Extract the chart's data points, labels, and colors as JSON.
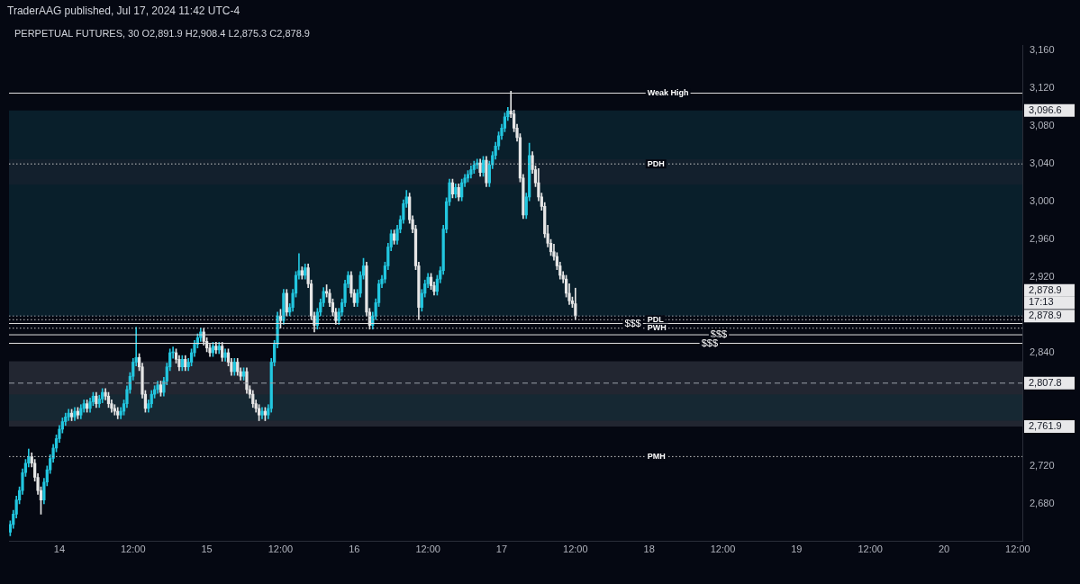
{
  "chart_data": {
    "type": "candlestick",
    "title": "PERPETUAL FUTURES, 30 O2,891.9 H2,908.4 L2,875.3 C2,878.9",
    "subtitle": "TraderAAG published, Jul 17, 2024 11:42 UTC-4",
    "x": [
      "2024-07-13T16:00",
      "2024-07-13T16:30",
      "2024-07-13T17:00",
      "2024-07-13T17:30",
      "2024-07-13T18:00",
      "2024-07-13T18:30",
      "2024-07-13T19:00",
      "2024-07-13T19:30",
      "2024-07-13T20:00",
      "2024-07-13T20:30",
      "2024-07-13T21:00",
      "2024-07-13T21:30",
      "2024-07-13T22:00",
      "2024-07-13T22:30",
      "2024-07-13T23:00",
      "2024-07-13T23:30",
      "2024-07-14T00:00",
      "2024-07-14T00:30",
      "2024-07-14T01:00",
      "2024-07-14T01:30",
      "2024-07-14T02:00",
      "2024-07-14T02:30",
      "2024-07-14T03:00",
      "2024-07-14T03:30",
      "2024-07-14T04:00",
      "2024-07-14T04:30",
      "2024-07-14T05:00",
      "2024-07-14T05:30",
      "2024-07-14T06:00",
      "2024-07-14T06:30",
      "2024-07-14T07:00",
      "2024-07-14T07:30",
      "2024-07-14T08:00",
      "2024-07-14T08:30",
      "2024-07-14T09:00",
      "2024-07-14T09:30",
      "2024-07-14T10:00",
      "2024-07-14T10:30",
      "2024-07-14T11:00",
      "2024-07-14T11:30",
      "2024-07-14T12:00",
      "2024-07-14T12:30",
      "2024-07-14T13:00",
      "2024-07-14T13:30",
      "2024-07-14T14:00",
      "2024-07-14T14:30",
      "2024-07-14T15:00",
      "2024-07-14T15:30",
      "2024-07-14T16:00",
      "2024-07-14T16:30",
      "2024-07-14T17:00",
      "2024-07-14T17:30",
      "2024-07-14T18:00",
      "2024-07-14T18:30",
      "2024-07-14T19:00",
      "2024-07-14T19:30",
      "2024-07-14T20:00",
      "2024-07-14T20:30",
      "2024-07-14T21:00",
      "2024-07-14T21:30",
      "2024-07-14T22:00",
      "2024-07-14T22:30",
      "2024-07-14T23:00",
      "2024-07-14T23:30",
      "2024-07-15T00:00",
      "2024-07-15T00:30",
      "2024-07-15T01:00",
      "2024-07-15T01:30",
      "2024-07-15T02:00",
      "2024-07-15T02:30",
      "2024-07-15T03:00",
      "2024-07-15T03:30",
      "2024-07-15T04:00",
      "2024-07-15T04:30",
      "2024-07-15T05:00",
      "2024-07-15T05:30",
      "2024-07-15T06:00",
      "2024-07-15T06:30",
      "2024-07-15T07:00",
      "2024-07-15T07:30",
      "2024-07-15T08:00",
      "2024-07-15T08:30",
      "2024-07-15T09:00",
      "2024-07-15T09:30",
      "2024-07-15T10:00",
      "2024-07-15T10:30",
      "2024-07-15T11:00",
      "2024-07-15T11:30",
      "2024-07-15T12:00",
      "2024-07-15T12:30",
      "2024-07-15T13:00",
      "2024-07-15T13:30",
      "2024-07-15T14:00",
      "2024-07-15T14:30",
      "2024-07-15T15:00",
      "2024-07-15T15:30",
      "2024-07-15T16:00",
      "2024-07-15T16:30",
      "2024-07-15T17:00",
      "2024-07-15T17:30",
      "2024-07-15T18:00",
      "2024-07-15T18:30",
      "2024-07-15T19:00",
      "2024-07-15T19:30",
      "2024-07-15T20:00",
      "2024-07-15T20:30",
      "2024-07-15T21:00",
      "2024-07-15T21:30",
      "2024-07-15T22:00",
      "2024-07-15T22:30",
      "2024-07-15T23:00",
      "2024-07-15T23:30",
      "2024-07-16T00:00",
      "2024-07-16T00:30",
      "2024-07-16T01:00",
      "2024-07-16T01:30",
      "2024-07-16T02:00",
      "2024-07-16T02:30",
      "2024-07-16T03:00",
      "2024-07-16T03:30",
      "2024-07-16T04:00",
      "2024-07-16T04:30",
      "2024-07-16T05:00",
      "2024-07-16T05:30",
      "2024-07-16T06:00",
      "2024-07-16T06:30",
      "2024-07-16T07:00",
      "2024-07-16T07:30",
      "2024-07-16T08:00",
      "2024-07-16T08:30",
      "2024-07-16T09:00",
      "2024-07-16T09:30",
      "2024-07-16T10:00",
      "2024-07-16T10:30",
      "2024-07-16T11:00",
      "2024-07-16T11:30",
      "2024-07-16T12:00",
      "2024-07-16T12:30",
      "2024-07-16T13:00",
      "2024-07-16T13:30",
      "2024-07-16T14:00",
      "2024-07-16T14:30",
      "2024-07-16T15:00",
      "2024-07-16T15:30",
      "2024-07-16T16:00",
      "2024-07-16T16:30",
      "2024-07-16T17:00",
      "2024-07-16T17:30",
      "2024-07-16T18:00",
      "2024-07-16T18:30",
      "2024-07-16T19:00",
      "2024-07-16T19:30",
      "2024-07-16T20:00",
      "2024-07-16T20:30",
      "2024-07-16T21:00",
      "2024-07-16T21:30",
      "2024-07-16T22:00",
      "2024-07-16T22:30",
      "2024-07-16T23:00",
      "2024-07-16T23:30",
      "2024-07-17T00:00",
      "2024-07-17T00:30",
      "2024-07-17T01:00",
      "2024-07-17T01:30",
      "2024-07-17T02:00",
      "2024-07-17T02:30",
      "2024-07-17T03:00",
      "2024-07-17T03:30",
      "2024-07-17T04:00",
      "2024-07-17T04:30",
      "2024-07-17T05:00",
      "2024-07-17T05:30",
      "2024-07-17T06:00",
      "2024-07-17T06:30",
      "2024-07-17T07:00",
      "2024-07-17T07:30",
      "2024-07-17T08:00",
      "2024-07-17T08:30",
      "2024-07-17T09:00",
      "2024-07-17T09:30",
      "2024-07-17T10:00",
      "2024-07-17T10:30",
      "2024-07-17T11:00",
      "2024-07-17T11:30",
      "2024-07-17T12:00"
    ],
    "series": [
      {
        "colors": [
          "#22c7e0",
          "#22c7e0",
          "#22c7e0",
          "#22c7e0",
          "#22c7e0",
          "#22c7e0",
          "#22c7e0",
          "#e6e6e6",
          "#e6e6e6",
          "#e6e6e6",
          "#e6e6e6",
          "#22c7e0",
          "#22c7e0",
          "#22c7e0",
          "#22c7e0",
          "#22c7e0",
          "#22c7e0",
          "#22c7e0",
          "#22c7e0",
          "#22c7e0",
          "#e6e6e6",
          "#22c7e0",
          "#e6e6e6",
          "#22c7e0",
          "#22c7e0",
          "#e6e6e6",
          "#22c7e0",
          "#22c7e0",
          "#e6e6e6",
          "#22c7e0",
          "#22c7e0",
          "#e6e6e6",
          "#e6e6e6",
          "#e6e6e6",
          "#e6e6e6",
          "#e6e6e6",
          "#22c7e0",
          "#22c7e0",
          "#22c7e0",
          "#22c7e0",
          "#22c7e0",
          "#22c7e0",
          "#e6e6e6",
          "#e6e6e6",
          "#e6e6e6",
          "#22c7e0",
          "#22c7e0",
          "#22c7e0",
          "#22c7e0",
          "#e6e6e6",
          "#22c7e0",
          "#22c7e0",
          "#22c7e0",
          "#22c7e0",
          "#e6e6e6",
          "#e6e6e6",
          "#22c7e0",
          "#e6e6e6",
          "#22c7e0",
          "#22c7e0",
          "#22c7e0",
          "#22c7e0",
          "#22c7e0",
          "#e6e6e6",
          "#e6e6e6",
          "#e6e6e6",
          "#22c7e0",
          "#e6e6e6",
          "#22c7e0",
          "#e6e6e6",
          "#22c7e0",
          "#e6e6e6",
          "#e6e6e6",
          "#22c7e0",
          "#e6e6e6",
          "#e6e6e6",
          "#22c7e0",
          "#e6e6e6",
          "#e6e6e6",
          "#e6e6e6",
          "#e6e6e6",
          "#e6e6e6",
          "#22c7e0",
          "#e6e6e6",
          "#22c7e0",
          "#22c7e0",
          "#22c7e0",
          "#22c7e0",
          "#e6e6e6",
          "#22c7e0",
          "#e6e6e6",
          "#22c7e0",
          "#22c7e0",
          "#22c7e0",
          "#22c7e0",
          "#e6e6e6",
          "#22c7e0",
          "#e6e6e6",
          "#e6e6e6",
          "#e6e6e6",
          "#22c7e0",
          "#22c7e0",
          "#22c7e0",
          "#e6e6e6",
          "#e6e6e6",
          "#e6e6e6",
          "#e6e6e6",
          "#22c7e0",
          "#22c7e0",
          "#22c7e0",
          "#22c7e0",
          "#e6e6e6",
          "#e6e6e6",
          "#22c7e0",
          "#22c7e0",
          "#22c7e0",
          "#e6e6e6",
          "#e6e6e6",
          "#22c7e0",
          "#22c7e0",
          "#22c7e0",
          "#22c7e0",
          "#22c7e0",
          "#22c7e0",
          "#22c7e0",
          "#e6e6e6",
          "#22c7e0",
          "#22c7e0",
          "#22c7e0",
          "#22c7e0",
          "#e6e6e6",
          "#e6e6e6",
          "#e6e6e6",
          "#e6e6e6",
          "#22c7e0",
          "#22c7e0",
          "#22c7e0",
          "#e6e6e6",
          "#e6e6e6",
          "#22c7e0",
          "#22c7e0",
          "#22c7e0",
          "#22c7e0",
          "#22c7e0",
          "#e6e6e6",
          "#22c7e0",
          "#e6e6e6",
          "#22c7e0",
          "#22c7e0",
          "#22c7e0",
          "#22c7e0",
          "#22c7e0",
          "#22c7e0",
          "#e6e6e6",
          "#22c7e0",
          "#e6e6e6",
          "#22c7e0",
          "#22c7e0",
          "#22c7e0",
          "#22c7e0",
          "#22c7e0",
          "#22c7e0",
          "#22c7e0",
          "#e6e6e6",
          "#e6e6e6",
          "#e6e6e6",
          "#e6e6e6",
          "#e6e6e6",
          "#22c7e0",
          "#22c7e0",
          "#e6e6e6",
          "#e6e6e6",
          "#e6e6e6",
          "#e6e6e6",
          "#e6e6e6",
          "#e6e6e6",
          "#e6e6e6",
          "#e6e6e6",
          "#e6e6e6",
          "#e6e6e6",
          "#e6e6e6",
          "#e6e6e6",
          "#e6e6e6",
          "#e6e6e6",
          "#e6e6e6"
        ],
        "ohlc": [
          [
            2650,
            2662,
            2646,
            2658
          ],
          [
            2658,
            2673,
            2654,
            2669
          ],
          [
            2669,
            2688,
            2665,
            2684
          ],
          [
            2684,
            2698,
            2680,
            2694
          ],
          [
            2694,
            2717,
            2690,
            2713
          ],
          [
            2713,
            2727,
            2709,
            2723
          ],
          [
            2723,
            2738,
            2719,
            2730
          ],
          [
            2730,
            2734,
            2719,
            2723
          ],
          [
            2723,
            2727,
            2704,
            2708
          ],
          [
            2708,
            2712,
            2690,
            2694
          ],
          [
            2694,
            2698,
            2669,
            2684
          ],
          [
            2684,
            2707,
            2680,
            2703
          ],
          [
            2703,
            2720,
            2699,
            2716
          ],
          [
            2716,
            2732,
            2712,
            2728
          ],
          [
            2728,
            2743,
            2724,
            2739
          ],
          [
            2739,
            2753,
            2735,
            2749
          ],
          [
            2749,
            2763,
            2745,
            2759
          ],
          [
            2759,
            2771,
            2755,
            2767
          ],
          [
            2767,
            2776,
            2763,
            2772
          ],
          [
            2772,
            2780,
            2768,
            2776
          ],
          [
            2776,
            2780,
            2768,
            2772
          ],
          [
            2772,
            2782,
            2768,
            2778
          ],
          [
            2778,
            2782,
            2770,
            2774
          ],
          [
            2774,
            2785,
            2770,
            2781
          ],
          [
            2781,
            2790,
            2777,
            2786
          ],
          [
            2786,
            2790,
            2777,
            2781
          ],
          [
            2781,
            2792,
            2777,
            2788
          ],
          [
            2788,
            2798,
            2784,
            2794
          ],
          [
            2794,
            2798,
            2782,
            2786
          ],
          [
            2786,
            2795,
            2782,
            2791
          ],
          [
            2791,
            2802,
            2787,
            2798
          ],
          [
            2798,
            2802,
            2790,
            2794
          ],
          [
            2794,
            2798,
            2782,
            2786
          ],
          [
            2786,
            2790,
            2777,
            2781
          ],
          [
            2781,
            2785,
            2774,
            2778
          ],
          [
            2778,
            2782,
            2770,
            2774
          ],
          [
            2774,
            2782,
            2770,
            2778
          ],
          [
            2778,
            2790,
            2774,
            2786
          ],
          [
            2786,
            2805,
            2782,
            2801
          ],
          [
            2801,
            2819,
            2797,
            2815
          ],
          [
            2815,
            2834,
            2811,
            2830
          ],
          [
            2830,
            2867,
            2826,
            2835
          ],
          [
            2835,
            2839,
            2821,
            2825
          ],
          [
            2825,
            2829,
            2792,
            2796
          ],
          [
            2796,
            2800,
            2777,
            2781
          ],
          [
            2781,
            2790,
            2777,
            2786
          ],
          [
            2786,
            2800,
            2782,
            2796
          ],
          [
            2796,
            2805,
            2792,
            2801
          ],
          [
            2801,
            2810,
            2797,
            2806
          ],
          [
            2806,
            2810,
            2794,
            2798
          ],
          [
            2798,
            2814,
            2794,
            2810
          ],
          [
            2810,
            2829,
            2806,
            2825
          ],
          [
            2825,
            2844,
            2821,
            2840
          ],
          [
            2840,
            2846,
            2834,
            2840
          ],
          [
            2840,
            2844,
            2829,
            2833
          ],
          [
            2833,
            2837,
            2821,
            2825
          ],
          [
            2825,
            2837,
            2821,
            2833
          ],
          [
            2833,
            2837,
            2821,
            2825
          ],
          [
            2825,
            2834,
            2821,
            2830
          ],
          [
            2830,
            2844,
            2826,
            2840
          ],
          [
            2840,
            2853,
            2836,
            2849
          ],
          [
            2849,
            2860,
            2845,
            2856
          ],
          [
            2856,
            2866,
            2852,
            2862
          ],
          [
            2862,
            2866,
            2848,
            2852
          ],
          [
            2852,
            2856,
            2841,
            2845
          ],
          [
            2845,
            2849,
            2836,
            2840
          ],
          [
            2840,
            2851,
            2836,
            2847
          ],
          [
            2847,
            2851,
            2839,
            2843
          ],
          [
            2843,
            2851,
            2839,
            2847
          ],
          [
            2847,
            2851,
            2831,
            2835
          ],
          [
            2835,
            2844,
            2831,
            2840
          ],
          [
            2840,
            2844,
            2826,
            2830
          ],
          [
            2830,
            2834,
            2816,
            2820
          ],
          [
            2820,
            2834,
            2816,
            2830
          ],
          [
            2830,
            2834,
            2816,
            2820
          ],
          [
            2820,
            2824,
            2811,
            2815
          ],
          [
            2815,
            2824,
            2811,
            2820
          ],
          [
            2820,
            2824,
            2797,
            2801
          ],
          [
            2801,
            2805,
            2792,
            2796
          ],
          [
            2796,
            2800,
            2782,
            2786
          ],
          [
            2786,
            2790,
            2777,
            2781
          ],
          [
            2781,
            2785,
            2768,
            2774
          ],
          [
            2774,
            2782,
            2770,
            2778
          ],
          [
            2778,
            2782,
            2768,
            2774
          ],
          [
            2774,
            2785,
            2770,
            2781
          ],
          [
            2781,
            2834,
            2777,
            2830
          ],
          [
            2830,
            2853,
            2826,
            2849
          ],
          [
            2849,
            2883,
            2845,
            2879
          ],
          [
            2879,
            2886,
            2866,
            2874
          ],
          [
            2874,
            2907,
            2870,
            2903
          ],
          [
            2903,
            2907,
            2879,
            2883
          ],
          [
            2883,
            2892,
            2879,
            2888
          ],
          [
            2888,
            2907,
            2884,
            2903
          ],
          [
            2903,
            2926,
            2899,
            2922
          ],
          [
            2922,
            2945,
            2918,
            2927
          ],
          [
            2927,
            2931,
            2918,
            2922
          ],
          [
            2922,
            2934,
            2918,
            2930
          ],
          [
            2930,
            2934,
            2909,
            2913
          ],
          [
            2913,
            2917,
            2875,
            2879
          ],
          [
            2879,
            2883,
            2862,
            2869
          ],
          [
            2869,
            2887,
            2865,
            2883
          ],
          [
            2883,
            2897,
            2879,
            2893
          ],
          [
            2893,
            2909,
            2889,
            2905
          ],
          [
            2905,
            2912,
            2899,
            2903
          ],
          [
            2903,
            2907,
            2889,
            2893
          ],
          [
            2893,
            2897,
            2879,
            2883
          ],
          [
            2883,
            2887,
            2870,
            2874
          ],
          [
            2874,
            2887,
            2870,
            2883
          ],
          [
            2883,
            2897,
            2879,
            2893
          ],
          [
            2893,
            2917,
            2889,
            2913
          ],
          [
            2913,
            2926,
            2909,
            2922
          ],
          [
            2922,
            2926,
            2899,
            2903
          ],
          [
            2903,
            2907,
            2889,
            2893
          ],
          [
            2893,
            2907,
            2889,
            2903
          ],
          [
            2903,
            2926,
            2899,
            2922
          ],
          [
            2922,
            2940,
            2918,
            2932
          ],
          [
            2932,
            2936,
            2879,
            2883
          ],
          [
            2883,
            2887,
            2865,
            2869
          ],
          [
            2869,
            2883,
            2865,
            2879
          ],
          [
            2879,
            2897,
            2875,
            2893
          ],
          [
            2893,
            2917,
            2889,
            2913
          ],
          [
            2913,
            2922,
            2909,
            2918
          ],
          [
            2918,
            2936,
            2914,
            2932
          ],
          [
            2932,
            2956,
            2928,
            2952
          ],
          [
            2952,
            2970,
            2948,
            2966
          ],
          [
            2966,
            2970,
            2955,
            2959
          ],
          [
            2959,
            2975,
            2955,
            2971
          ],
          [
            2971,
            2985,
            2967,
            2981
          ],
          [
            2981,
            3002,
            2977,
            2998
          ],
          [
            2998,
            3012,
            2994,
            3005
          ],
          [
            3005,
            3009,
            2977,
            2981
          ],
          [
            2981,
            2985,
            2967,
            2971
          ],
          [
            2971,
            2975,
            2928,
            2932
          ],
          [
            2932,
            2936,
            2875,
            2888
          ],
          [
            2888,
            2907,
            2884,
            2903
          ],
          [
            2903,
            2917,
            2899,
            2913
          ],
          [
            2913,
            2924,
            2909,
            2920
          ],
          [
            2920,
            2924,
            2907,
            2911
          ],
          [
            2911,
            2915,
            2901,
            2905
          ],
          [
            2905,
            2922,
            2901,
            2918
          ],
          [
            2918,
            2931,
            2914,
            2927
          ],
          [
            2927,
            2975,
            2923,
            2971
          ],
          [
            2971,
            3004,
            2967,
            3000
          ],
          [
            3000,
            3024,
            2996,
            3020
          ],
          [
            3020,
            3024,
            3004,
            3008
          ],
          [
            3008,
            3019,
            3004,
            3015
          ],
          [
            3015,
            3019,
            3001,
            3005
          ],
          [
            3005,
            3024,
            3001,
            3020
          ],
          [
            3020,
            3029,
            3016,
            3025
          ],
          [
            3025,
            3033,
            3021,
            3029
          ],
          [
            3029,
            3038,
            3025,
            3034
          ],
          [
            3034,
            3043,
            3030,
            3039
          ],
          [
            3039,
            3045,
            3035,
            3041
          ],
          [
            3041,
            3045,
            3027,
            3031
          ],
          [
            3031,
            3048,
            3027,
            3044
          ],
          [
            3044,
            3048,
            3016,
            3020
          ],
          [
            3020,
            3043,
            3016,
            3039
          ],
          [
            3039,
            3053,
            3035,
            3049
          ],
          [
            3049,
            3063,
            3045,
            3059
          ],
          [
            3059,
            3074,
            3055,
            3070
          ],
          [
            3070,
            3082,
            3066,
            3078
          ],
          [
            3078,
            3094,
            3074,
            3090
          ],
          [
            3090,
            3100,
            3086,
            3096
          ],
          [
            3096,
            3117,
            3089,
            3093
          ],
          [
            3093,
            3097,
            3074,
            3078
          ],
          [
            3078,
            3082,
            3064,
            3068
          ],
          [
            3068,
            3072,
            3021,
            3025
          ],
          [
            3025,
            3029,
            2982,
            2986
          ],
          [
            2986,
            3009,
            2982,
            3005
          ],
          [
            3005,
            3062,
            3001,
            3049
          ],
          [
            3049,
            3053,
            3030,
            3034
          ],
          [
            3034,
            3038,
            3016,
            3020
          ],
          [
            3020,
            3035,
            3001,
            3005
          ],
          [
            3005,
            3009,
            2991,
            2995
          ],
          [
            2995,
            2999,
            2962,
            2966
          ],
          [
            2966,
            2975,
            2952,
            2956
          ],
          [
            2956,
            2960,
            2943,
            2947
          ],
          [
            2947,
            2955,
            2938,
            2942
          ],
          [
            2942,
            2946,
            2928,
            2932
          ],
          [
            2932,
            2936,
            2918,
            2922
          ],
          [
            2922,
            2926,
            2914,
            2918
          ],
          [
            2918,
            2922,
            2899,
            2903
          ],
          [
            2903,
            2913,
            2891,
            2895
          ],
          [
            2895,
            2899,
            2888,
            2892
          ],
          [
            2891.9,
            2908.4,
            2875.3,
            2878.9
          ]
        ]
      }
    ],
    "xlim": [
      "2024-07-13T15:48",
      "2024-07-20T12:45"
    ],
    "xticks": [
      {
        "value": "2024-07-14",
        "label": "14"
      },
      {
        "value": "2024-07-14T12:00",
        "label": "12:00"
      },
      {
        "value": "2024-07-15",
        "label": "15"
      },
      {
        "value": "2024-07-15T12:00",
        "label": "12:00"
      },
      {
        "value": "2024-07-16",
        "label": "16"
      },
      {
        "value": "2024-07-16T12:00",
        "label": "12:00"
      },
      {
        "value": "2024-07-17",
        "label": "17"
      },
      {
        "value": "2024-07-17T12:00",
        "label": "12:00"
      },
      {
        "value": "2024-07-18",
        "label": "18"
      },
      {
        "value": "2024-07-18T12:00",
        "label": "12:00"
      },
      {
        "value": "2024-07-19",
        "label": "19"
      },
      {
        "value": "2024-07-19T12:00",
        "label": "12:00"
      },
      {
        "value": "2024-07-20",
        "label": "20"
      },
      {
        "value": "2024-07-20T12:00",
        "label": "12:00"
      }
    ],
    "ylim": [
      2640,
      3166
    ],
    "yticks": [
      {
        "value": 2680,
        "label": "2,680"
      },
      {
        "value": 2720,
        "label": "2,720"
      },
      {
        "value": 2840,
        "label": "2,840"
      },
      {
        "value": 2920,
        "label": "2,920"
      },
      {
        "value": 2960,
        "label": "2,960"
      },
      {
        "value": 3000,
        "label": "3,000"
      },
      {
        "value": 3040,
        "label": "3,040"
      },
      {
        "value": 3080,
        "label": "3,080"
      },
      {
        "value": 3120,
        "label": "3,120"
      },
      {
        "value": 3160,
        "label": "3,160"
      }
    ],
    "ref_lines": [
      {
        "axis": "y",
        "value": 3115,
        "label": "Weak High",
        "color": "#e0e0e0",
        "line_style": "solid"
      },
      {
        "axis": "y",
        "value": 3040,
        "label": "PDH",
        "color": "#c8c8c8",
        "line_style": "dotted"
      },
      {
        "axis": "y",
        "value": 2878.9,
        "color": "#9aa0aa",
        "line_style": "dotted"
      },
      {
        "axis": "y",
        "value": 2875,
        "label": "PDL",
        "color": "#c8c8c8",
        "line_style": "dotted"
      },
      {
        "axis": "y",
        "value": 2871,
        "color": "#e0e0e0",
        "line_style": "solid"
      },
      {
        "axis": "y",
        "value": 2866,
        "label": "PWH",
        "color": "#c8c8c8",
        "line_style": "dotted"
      },
      {
        "axis": "y",
        "value": 2859,
        "color": "#e0e0e0",
        "line_style": "solid"
      },
      {
        "axis": "y",
        "value": 2850,
        "color": "#e0e0e0",
        "line_style": "solid"
      },
      {
        "axis": "y",
        "value": 2807.8,
        "color": "#9aa0aa",
        "line_style": "dashed"
      },
      {
        "axis": "y",
        "value": 2730,
        "label": "PMH",
        "color": "#c8c8c8",
        "line_style": "dotted"
      }
    ],
    "bands": [
      {
        "axis": "y",
        "from": 2878.9,
        "to": 3096.6,
        "color": "#0d3340"
      },
      {
        "axis": "y",
        "from": 2761.9,
        "to": 2831,
        "color": "#3a3f4a"
      },
      {
        "axis": "y",
        "from": 3018,
        "to": 3045,
        "color": "#1c2030"
      },
      {
        "axis": "y",
        "from": 2768,
        "to": 2796,
        "color": "#0c2a34"
      }
    ],
    "annotations": [
      {
        "text": "$$$",
        "x": "2024-07-17T20:00",
        "y": 2871
      },
      {
        "text": "$$$",
        "x": "2024-07-18T10:00",
        "y": 2859
      },
      {
        "text": "$$$",
        "x": "2024-07-18T08:30",
        "y": 2850
      },
      {
        "text": "3,096.6",
        "x": "2024-07-20T12:45",
        "y": 3096.6
      },
      {
        "text": "2,878.9",
        "x": "2024-07-20T12:45",
        "y": 2906
      },
      {
        "text": "17:13",
        "x": "2024-07-20T12:45",
        "y": 2893
      },
      {
        "text": "2,878.9",
        "x": "2024-07-20T12:45",
        "y": 2878.9
      },
      {
        "text": "2,807.8",
        "x": "2024-07-20T12:45",
        "y": 2807.8
      },
      {
        "text": "2,761.9",
        "x": "2024-07-20T12:45",
        "y": 2761.9
      }
    ]
  }
}
